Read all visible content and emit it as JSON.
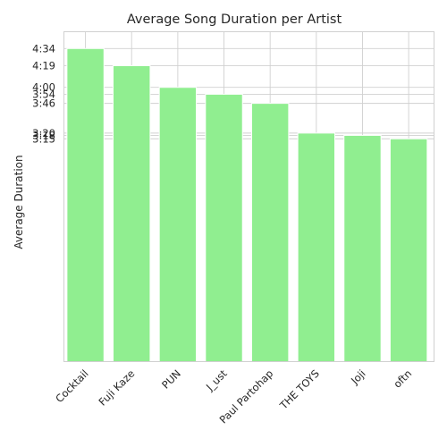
{
  "chart_data": {
    "type": "bar",
    "title": "Average Song Duration per Artist",
    "xlabel": "",
    "ylabel": "Average Duration",
    "categories": [
      "Cocktail",
      "Fuji Kaze",
      "PUN",
      "J_ust",
      "Paul Partohap",
      "THE TOYS",
      "Joji",
      "oftn"
    ],
    "values": [
      274,
      259,
      240,
      234,
      226,
      200,
      198,
      195
    ],
    "value_unit": "seconds",
    "value_labels": [
      "4:34",
      "4:19",
      "4:00",
      "3:54",
      "3:46",
      "3:20",
      "3:18",
      "3:15"
    ],
    "ylim": [
      0,
      275
    ],
    "bar_color": "#90ee90",
    "grid": true,
    "legend": "none"
  }
}
